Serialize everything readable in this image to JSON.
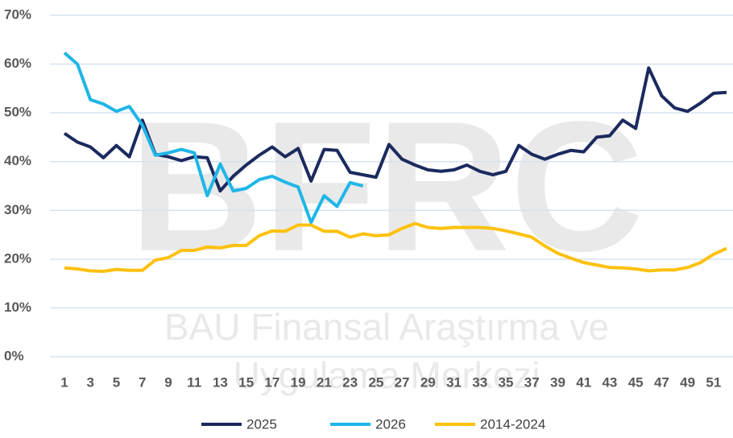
{
  "chart_data": {
    "type": "line",
    "watermark": [
      "BFRC",
      "BAU Finansal Araştırma ve",
      "Uygulama Merkezi"
    ],
    "x": [
      1,
      2,
      3,
      4,
      5,
      6,
      7,
      8,
      9,
      10,
      11,
      12,
      13,
      14,
      15,
      16,
      17,
      18,
      19,
      20,
      21,
      22,
      23,
      24,
      25,
      26,
      27,
      28,
      29,
      30,
      31,
      32,
      33,
      34,
      35,
      36,
      37,
      38,
      39,
      40,
      41,
      42,
      43,
      44,
      45,
      46,
      47,
      48,
      49,
      50,
      51,
      52
    ],
    "xlim": [
      1,
      52
    ],
    "xticks": [
      1,
      3,
      5,
      7,
      9,
      11,
      13,
      15,
      17,
      19,
      21,
      23,
      25,
      27,
      29,
      31,
      33,
      35,
      37,
      39,
      41,
      43,
      45,
      47,
      49,
      51
    ],
    "ylim": [
      0,
      70
    ],
    "yticks": [
      {
        "value": 0,
        "label": "0%"
      },
      {
        "value": 10,
        "label": "10%"
      },
      {
        "value": 20,
        "label": "20%"
      },
      {
        "value": 30,
        "label": "30%"
      },
      {
        "value": 40,
        "label": "40%"
      },
      {
        "value": 50,
        "label": "50%"
      },
      {
        "value": 60,
        "label": "60%"
      },
      {
        "value": 70,
        "label": "70%"
      }
    ],
    "grid": true,
    "legend": "bottom",
    "series": [
      {
        "name": "2025",
        "color": "#1b2a5e",
        "values": [
          45.8,
          44,
          43,
          40.8,
          43.3,
          41,
          48.5,
          41.5,
          41,
          40.2,
          41,
          40.8,
          34,
          37,
          39.3,
          41.3,
          43,
          41,
          42.7,
          36,
          42.5,
          42.3,
          37.8,
          37.3,
          36.8,
          43.5,
          40.5,
          39.3,
          38.3,
          38,
          38.3,
          39.3,
          38,
          37.3,
          38,
          43.3,
          41.5,
          40.5,
          41.5,
          42.3,
          42,
          45,
          45.3,
          48.5,
          46.8,
          59.2,
          53.5,
          51,
          50.3,
          52,
          54,
          54.2
        ]
      },
      {
        "name": "2026",
        "color": "#1fb6e8",
        "values": [
          62.3,
          60,
          52.7,
          51.8,
          50.3,
          51.3,
          47.5,
          41.3,
          41.8,
          42.5,
          41.8,
          33,
          39.5,
          34,
          34.5,
          36.3,
          37,
          35.8,
          34.8,
          27.5,
          33,
          30.8,
          35.7,
          35,
          null,
          null,
          null,
          null,
          null,
          null,
          null,
          null,
          null,
          null,
          null,
          null,
          null,
          null,
          null,
          null,
          null,
          null,
          null,
          null,
          null,
          null,
          null,
          null,
          null,
          null,
          null,
          null
        ]
      },
      {
        "name": "2014-2024",
        "color": "#fec10e",
        "values": [
          18.2,
          18,
          17.6,
          17.5,
          17.9,
          17.7,
          17.7,
          19.8,
          20.3,
          21.8,
          21.8,
          22.5,
          22.3,
          22.8,
          22.8,
          24.8,
          25.8,
          25.7,
          27,
          27,
          25.7,
          25.7,
          24.5,
          25.2,
          24.8,
          25,
          26.3,
          27.3,
          26.5,
          26.3,
          26.5,
          26.5,
          26.5,
          26.3,
          25.8,
          25.2,
          24.5,
          22.7,
          21.2,
          20.2,
          19.3,
          18.8,
          18.3,
          18.2,
          18,
          17.6,
          17.8,
          17.8,
          18.3,
          19.3,
          21,
          22.2
        ]
      }
    ]
  }
}
